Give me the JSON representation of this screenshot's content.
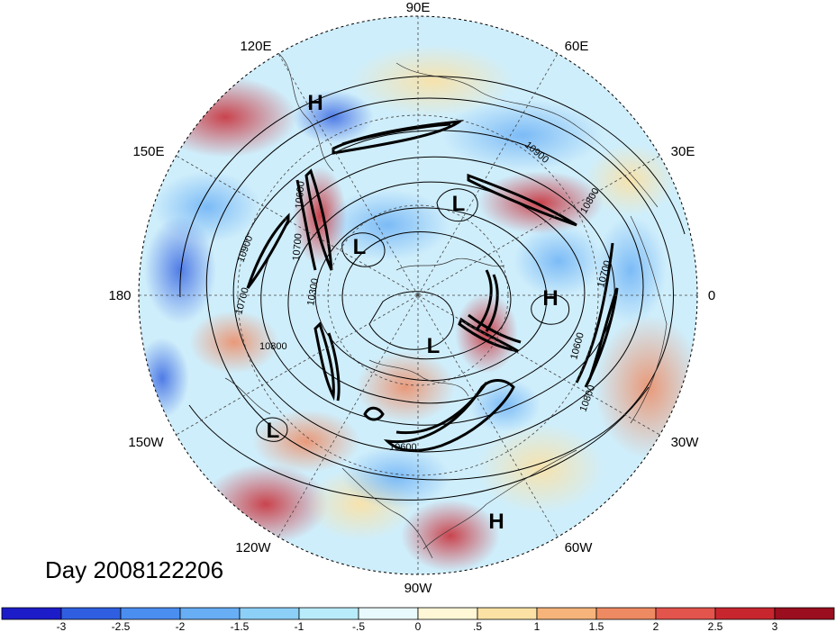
{
  "title": "Day 2008122206",
  "longitude_labels": [
    {
      "text": "90E",
      "angle": 90
    },
    {
      "text": "60E",
      "angle": 60
    },
    {
      "text": "30E",
      "angle": 30
    },
    {
      "text": "0",
      "angle": 0
    },
    {
      "text": "30W",
      "angle": -30
    },
    {
      "text": "60W",
      "angle": -60
    },
    {
      "text": "90W",
      "angle": -90
    },
    {
      "text": "120W",
      "angle": -120
    },
    {
      "text": "150W",
      "angle": -150
    },
    {
      "text": "180",
      "angle": 180
    },
    {
      "text": "150E",
      "angle": 150
    },
    {
      "text": "120E",
      "angle": 120
    }
  ],
  "pressure_centers": [
    {
      "label": "H",
      "name": "high-center-east-asia"
    },
    {
      "label": "L",
      "name": "low-center-siberia"
    },
    {
      "label": "L",
      "name": "low-center-east-siberia"
    },
    {
      "label": "L",
      "name": "low-center-canada"
    },
    {
      "label": "H",
      "name": "high-center-atlantic"
    },
    {
      "label": "L",
      "name": "low-center-pacific"
    },
    {
      "label": "H",
      "name": "high-center-caribbean"
    }
  ],
  "contour_labels": [
    "10900",
    "10800",
    "10700",
    "10600",
    "10300",
    "10900",
    "10800",
    "10700",
    "10600",
    "10800",
    "10600",
    "10700"
  ],
  "colorbar": {
    "ticks": [
      "-3",
      "-2.5",
      "-2",
      "-1.5",
      "-1",
      "-.5",
      "0",
      ".5",
      "1",
      "1.5",
      "2",
      "2.5",
      "3"
    ],
    "colors": [
      "#1c1cc8",
      "#2f5fe0",
      "#4a8ef0",
      "#67aef5",
      "#8cd0f8",
      "#b9ecfb",
      "#e8fafe",
      "#fff7d6",
      "#fbe1a4",
      "#f6b47a",
      "#ee8a62",
      "#e3544c",
      "#c8262f",
      "#9a0e1f"
    ]
  }
}
